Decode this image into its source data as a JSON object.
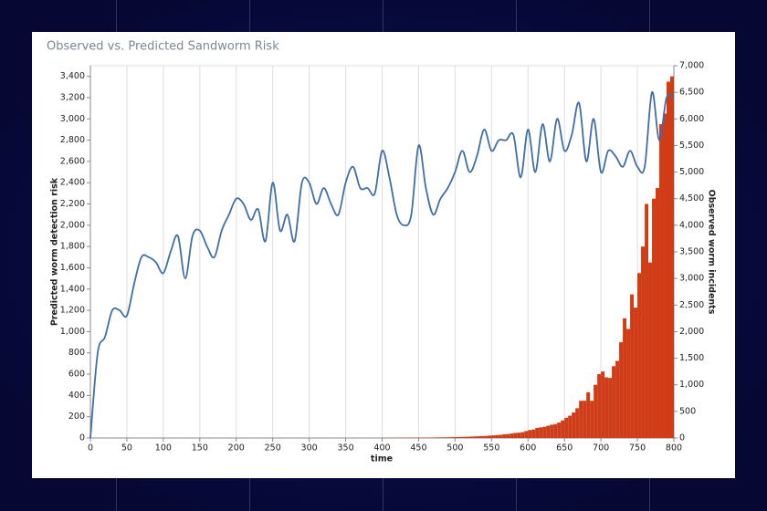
{
  "chart_data": {
    "type": "combo",
    "title": "Observed vs. Predicted Sandworm Risk",
    "x_label": "time",
    "y_label": "Predicted worm detection risk",
    "y2_label": "Observed worm incidents",
    "xlim": [
      0,
      800
    ],
    "xticks": [
      0,
      50,
      100,
      150,
      200,
      250,
      300,
      350,
      400,
      450,
      500,
      550,
      600,
      650,
      700,
      750,
      800
    ],
    "ylim": [
      0,
      3500
    ],
    "yticks": [
      0,
      200,
      400,
      600,
      800,
      {
        "value": 1000,
        "label": "1,000"
      },
      {
        "value": 1200,
        "label": "1,200"
      },
      {
        "value": 1400,
        "label": "1,400"
      },
      {
        "value": 1600,
        "label": "1,600"
      },
      {
        "value": 1800,
        "label": "1,800"
      },
      {
        "value": 2000,
        "label": "2,000"
      },
      {
        "value": 2200,
        "label": "2,200"
      },
      {
        "value": 2400,
        "label": "2,400"
      },
      {
        "value": 2600,
        "label": "2,600"
      },
      {
        "value": 2800,
        "label": "2,800"
      },
      {
        "value": 3000,
        "label": "3,000"
      },
      {
        "value": 3200,
        "label": "3,200"
      },
      {
        "value": 3400,
        "label": "3,400"
      }
    ],
    "y2lim": [
      0,
      7000
    ],
    "y2ticks": [
      0,
      500,
      {
        "value": 1000,
        "label": "1,000"
      },
      {
        "value": 1500,
        "label": "1,500"
      },
      {
        "value": 2000,
        "label": "2,000"
      },
      {
        "value": 2500,
        "label": "2,500"
      },
      {
        "value": 3000,
        "label": "3,000"
      },
      {
        "value": 3500,
        "label": "3,500"
      },
      {
        "value": 4000,
        "label": "4,000"
      },
      {
        "value": 4500,
        "label": "4,500"
      },
      {
        "value": 5000,
        "label": "5,000"
      },
      {
        "value": 5500,
        "label": "5,500"
      },
      {
        "value": 6000,
        "label": "6,000"
      },
      {
        "value": 6500,
        "label": "6,500"
      },
      {
        "value": 7000,
        "label": "7,000"
      }
    ],
    "grid": "x",
    "series": [
      {
        "type": "bar",
        "axis": "y2",
        "color": "#d13b16",
        "bins": [
          400,
          405,
          410,
          415,
          420,
          425,
          430,
          435,
          440,
          445,
          450,
          455,
          460,
          465,
          470,
          475,
          480,
          485,
          490,
          495,
          500,
          505,
          510,
          515,
          520,
          525,
          530,
          535,
          540,
          545,
          550,
          555,
          560,
          565,
          570,
          575,
          580,
          585,
          590,
          595,
          600,
          605,
          610,
          615,
          620,
          625,
          630,
          635,
          640,
          645,
          650,
          655,
          660,
          665,
          670,
          675,
          680,
          685,
          690,
          695,
          700,
          705,
          710,
          715,
          720,
          725,
          730,
          735,
          740,
          745,
          750,
          755,
          760,
          765,
          770,
          775,
          780,
          785,
          790,
          795,
          800
        ],
        "values": [
          2,
          2,
          3,
          3,
          4,
          4,
          5,
          5,
          6,
          6,
          7,
          7,
          8,
          9,
          10,
          11,
          12,
          13,
          14,
          16,
          18,
          20,
          22,
          24,
          27,
          30,
          33,
          36,
          40,
          45,
          50,
          55,
          60,
          70,
          75,
          85,
          95,
          100,
          110,
          130,
          150,
          160,
          190,
          200,
          210,
          230,
          250,
          260,
          290,
          330,
          380,
          420,
          480,
          560,
          700,
          700,
          860,
          700,
          1000,
          1200,
          1250,
          1140,
          1130,
          1350,
          1450,
          1800,
          2250,
          2050,
          2700,
          2450,
          3100,
          3600,
          4400,
          3300,
          4500,
          4700,
          5900,
          6100,
          6700,
          6800
        ]
      },
      {
        "type": "line",
        "color": "#3f6ea6",
        "x": [
          0,
          10,
          20,
          30,
          40,
          50,
          60,
          70,
          80,
          90,
          100,
          110,
          120,
          130,
          140,
          150,
          160,
          170,
          180,
          190,
          200,
          210,
          220,
          230,
          240,
          250,
          260,
          270,
          280,
          290,
          300,
          310,
          320,
          330,
          340,
          350,
          360,
          370,
          380,
          390,
          400,
          410,
          420,
          430,
          440,
          450,
          460,
          470,
          480,
          490,
          500,
          510,
          520,
          530,
          540,
          550,
          560,
          570,
          580,
          590,
          600,
          610,
          620,
          630,
          640,
          650,
          660,
          670,
          680,
          690,
          700,
          710,
          720,
          730,
          740,
          750,
          760,
          770,
          780,
          790,
          800
        ],
        "values": [
          0,
          800,
          950,
          1200,
          1200,
          1150,
          1450,
          1700,
          1700,
          1650,
          1550,
          1750,
          1900,
          1500,
          1900,
          1950,
          1800,
          1700,
          1950,
          2100,
          2250,
          2200,
          2050,
          2150,
          1850,
          2400,
          1950,
          2100,
          1850,
          2400,
          2400,
          2200,
          2350,
          2200,
          2100,
          2400,
          2550,
          2350,
          2350,
          2300,
          2700,
          2450,
          2100,
          2000,
          2100,
          2750,
          2350,
          2100,
          2250,
          2350,
          2500,
          2700,
          2500,
          2650,
          2900,
          2700,
          2800,
          2800,
          2850,
          2450,
          2900,
          2500,
          2950,
          2600,
          3000,
          2700,
          2850,
          3150,
          2600,
          3000,
          2500,
          2700,
          2650,
          2550,
          2700,
          2550,
          2550,
          3250,
          2800,
          3200,
          3200
        ]
      }
    ]
  }
}
